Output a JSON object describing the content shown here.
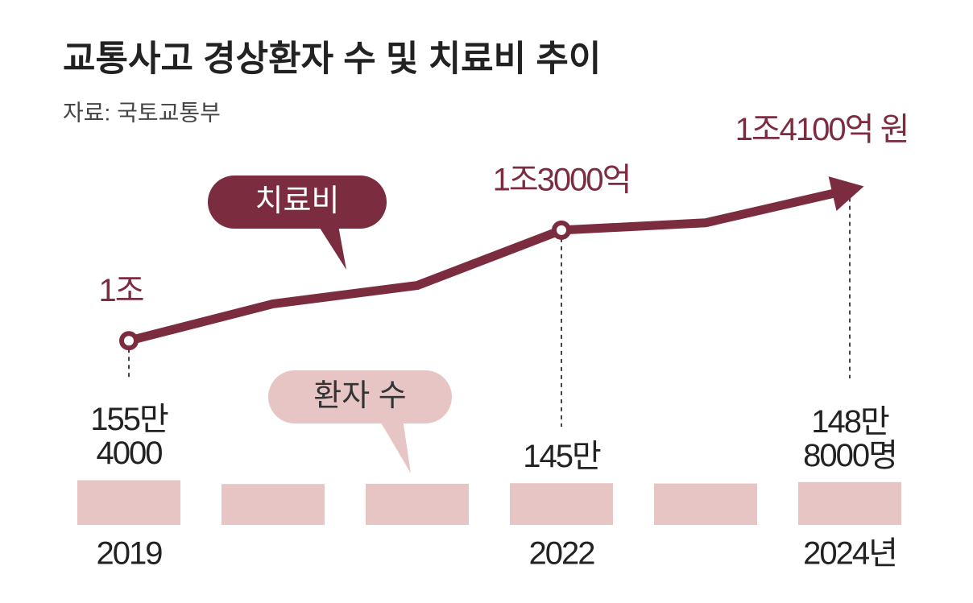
{
  "chart_data": {
    "type": "line-bar",
    "title": "교통사고 경상환자 수 및 치료비 추이",
    "subtitle": "자료: 국토교통부",
    "categories": [
      "2019",
      null,
      null,
      "2022",
      null,
      "2024년"
    ],
    "ylim": [
      5000,
      17500
    ],
    "y2lim": [
      0,
      16000000
    ],
    "series": [
      {
        "name": "치료비",
        "type": "line",
        "color": "#7b2d3f",
        "values": [
          10000,
          11000,
          11500,
          13000,
          13200,
          14100
        ],
        "value_labels": [
          "1조",
          null,
          null,
          "1조3000억",
          null,
          "1조4100억 원"
        ]
      },
      {
        "name": "환자 수",
        "type": "bar",
        "axis": "y2",
        "color": "#e8c5c5",
        "values": [
          1554000,
          1420000,
          1430000,
          1450000,
          1440000,
          1488000
        ],
        "value_labels": [
          "155만\n4000",
          null,
          null,
          "145만",
          null,
          "148만\n8000명"
        ]
      }
    ]
  }
}
